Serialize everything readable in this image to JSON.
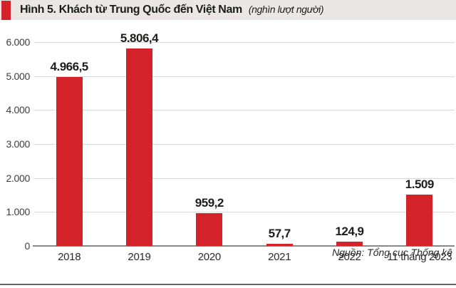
{
  "header": {
    "title": "Hình 5. Khách từ Trung Quốc đến Việt Nam",
    "subtitle": "(nghìn lượt người)",
    "accent_color": "#d4222a",
    "bg_color": "#eae7e4"
  },
  "footer": {
    "source": "Nguồn: Tổng cục Thống kê"
  },
  "chart_data": {
    "type": "bar",
    "title": "Hình 5. Khách từ Trung Quốc đến Việt Nam",
    "unit_label": "nghìn lượt người",
    "categories": [
      "2018",
      "2019",
      "2020",
      "2021",
      "2022",
      "11 tháng 2023"
    ],
    "values": [
      4966.5,
      5806.4,
      959.2,
      57.7,
      124.9,
      1509
    ],
    "value_labels": [
      "4.966,5",
      "5.806,4",
      "959,2",
      "57,7",
      "124,9",
      "1.509"
    ],
    "bar_color": "#d4222a",
    "ylim": [
      0,
      6000
    ],
    "y_tick_values": [
      0,
      1000,
      2000,
      3000,
      4000,
      5000,
      6000
    ],
    "y_tick_labels": [
      "0",
      "1.000",
      "2.000",
      "3.000",
      "4.000",
      "5.000",
      "6.000"
    ],
    "grid": true,
    "legend_position": "none",
    "source": "Nguồn: Tổng cục Thống kê"
  }
}
